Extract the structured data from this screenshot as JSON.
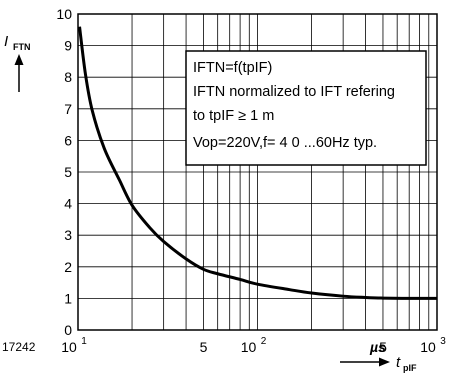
{
  "chart_data": {
    "type": "line",
    "x_scale": "log",
    "xlim": [
      10,
      1000
    ],
    "ylim": [
      0,
      10
    ],
    "y_ticks": [
      "0",
      "1",
      "2",
      "3",
      "4",
      "5",
      "6",
      "7",
      "8",
      "9",
      "10"
    ],
    "x_ticks": [
      {
        "value": 10,
        "base": "10",
        "exp": "1"
      },
      {
        "value": 50,
        "base": "5",
        "exp": ""
      },
      {
        "value": 100,
        "base": "10",
        "exp": "2"
      },
      {
        "value": 500,
        "base": "5",
        "exp": ""
      },
      {
        "value": 1000,
        "base": "10",
        "exp": "3"
      }
    ],
    "ylabel": {
      "main": "I",
      "sub": "FTN"
    },
    "xlabel": {
      "main": "t",
      "sub": "pIF"
    },
    "x_unit": "µs",
    "figure_id": "17242",
    "annotations": [
      "IFTN=f(tpIF)",
      "IFTN normalized to IFT refering",
      "to tpIF ≥ 1 m",
      "Vop=220V,f= 4 0 ...60Hz typ."
    ],
    "grid": true,
    "series": [
      {
        "x": [
          10.2,
          11,
          12,
          14,
          17,
          20,
          25,
          30,
          40,
          50,
          60,
          80,
          100,
          150,
          200,
          300,
          400,
          500,
          700,
          1000
        ],
        "values": [
          9.6,
          8.1,
          6.95,
          5.75,
          4.75,
          3.95,
          3.25,
          2.8,
          2.25,
          1.92,
          1.78,
          1.6,
          1.45,
          1.28,
          1.17,
          1.07,
          1.03,
          1.01,
          1.0,
          1.0
        ]
      }
    ]
  }
}
